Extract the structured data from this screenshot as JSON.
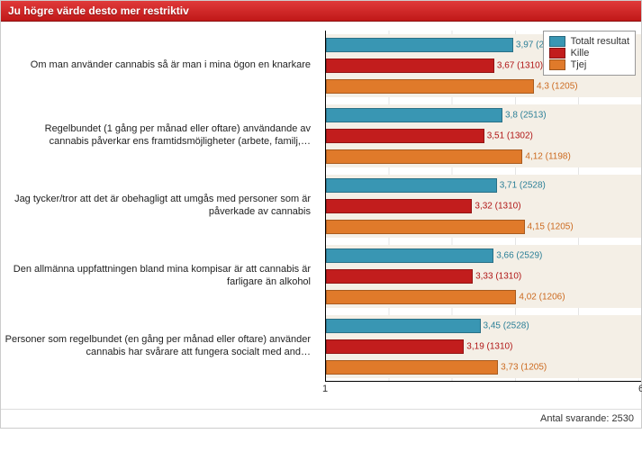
{
  "header": {
    "title": "Ju högre värde desto mer restriktiv"
  },
  "chart": {
    "type": "bar",
    "xlim": [
      1,
      6
    ],
    "xticks": {
      "start": "1",
      "end": "6"
    },
    "background_color": "#f4efe6",
    "grid_color": "#e5e5e5",
    "series": [
      {
        "key": "total",
        "label": "Totalt resultat",
        "color": "#3996b3",
        "text_color": "#2b7f97"
      },
      {
        "key": "kille",
        "label": "Kille",
        "color": "#c21d1d",
        "text_color": "#b01515"
      },
      {
        "key": "tjej",
        "label": "Tjej",
        "color": "#e07a2a",
        "text_color": "#cc6a1f"
      }
    ],
    "groups": [
      {
        "label": "Om man använder cannabis så är man i mina ögon en knarkare",
        "values": {
          "total": {
            "v": 3.97,
            "n": 2528
          },
          "kille": {
            "v": 3.67,
            "n": 1310
          },
          "tjej": {
            "v": 4.3,
            "n": 1205
          }
        }
      },
      {
        "label": "Regelbundet (1 gång per månad eller oftare) användande av cannabis påverkar ens framtidsmöjligheter (arbete, familj,…",
        "values": {
          "total": {
            "v": 3.8,
            "n": 2513
          },
          "kille": {
            "v": 3.51,
            "n": 1302
          },
          "tjej": {
            "v": 4.12,
            "n": 1198
          }
        }
      },
      {
        "label": "Jag tycker/tror att det är obehagligt att umgås med personer som är påverkade av cannabis",
        "values": {
          "total": {
            "v": 3.71,
            "n": 2528
          },
          "kille": {
            "v": 3.32,
            "n": 1310
          },
          "tjej": {
            "v": 4.15,
            "n": 1205
          }
        }
      },
      {
        "label": "Den allmänna uppfattningen bland mina kompisar är att cannabis är farligare än alkohol",
        "values": {
          "total": {
            "v": 3.66,
            "n": 2529
          },
          "kille": {
            "v": 3.33,
            "n": 1310
          },
          "tjej": {
            "v": 4.02,
            "n": 1206
          }
        }
      },
      {
        "label": "Personer som regelbundet (en gång per månad eller oftare) använder cannabis har svårare att fungera socialt med and…",
        "values": {
          "total": {
            "v": 3.45,
            "n": 2528
          },
          "kille": {
            "v": 3.19,
            "n": 1310
          },
          "tjej": {
            "v": 3.73,
            "n": 1205
          }
        }
      }
    ]
  },
  "footer": {
    "label": "Antal svarande: 2530"
  }
}
